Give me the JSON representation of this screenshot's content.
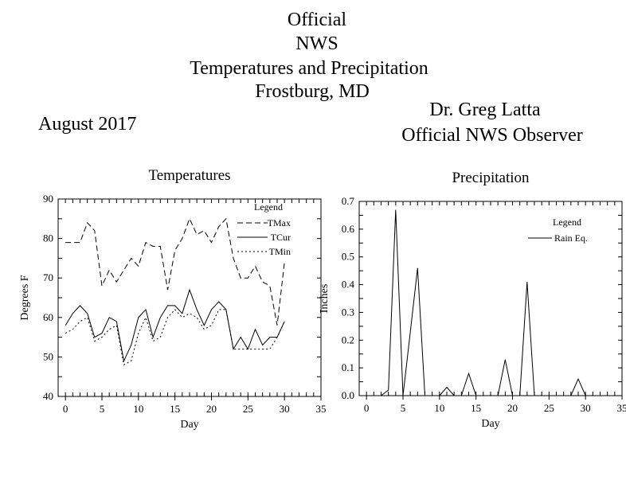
{
  "header": {
    "line1": "Official",
    "line2": "NWS",
    "line3": "Temperatures and Precipitation",
    "line4": "Frostburg, MD",
    "month": "August 2017",
    "observer_name": "Dr. Greg Latta",
    "observer_title": "Official NWS Observer"
  },
  "chart_data": [
    {
      "type": "line",
      "title": "Temperatures",
      "xlabel": "Day",
      "ylabel": "Degrees F",
      "xlim": [
        -1,
        35
      ],
      "ylim": [
        40,
        90
      ],
      "x_ticks": [
        0,
        5,
        10,
        15,
        20,
        25,
        30,
        35
      ],
      "y_ticks": [
        40,
        50,
        60,
        70,
        80,
        90
      ],
      "legend": {
        "title": "Legend",
        "position": "top-right"
      },
      "grid": false,
      "x": [
        0,
        1,
        2,
        3,
        4,
        5,
        6,
        7,
        8,
        9,
        10,
        11,
        12,
        13,
        14,
        15,
        16,
        17,
        18,
        19,
        20,
        21,
        22,
        23,
        24,
        25,
        26,
        27,
        28,
        29,
        30
      ],
      "series": [
        {
          "name": "TMax",
          "style": "dashed",
          "values": [
            79,
            79,
            79,
            84,
            82,
            68,
            72,
            69,
            72,
            75,
            73,
            79,
            78,
            78,
            67,
            77,
            80,
            85,
            81,
            82,
            79,
            83,
            85,
            75,
            70,
            70,
            73,
            69,
            68,
            58,
            74
          ]
        },
        {
          "name": "TCur",
          "style": "solid",
          "values": [
            58,
            61,
            63,
            61,
            55,
            56,
            60,
            59,
            49,
            53,
            60,
            62,
            55,
            60,
            63,
            63,
            61,
            67,
            62,
            58,
            62,
            64,
            62,
            52,
            55,
            52,
            57,
            53,
            55,
            55,
            59
          ]
        },
        {
          "name": "TMin",
          "style": "dotted",
          "values": [
            56,
            57,
            59,
            60,
            54,
            55,
            57,
            58,
            48,
            49,
            56,
            60,
            54,
            55,
            60,
            62,
            60,
            61,
            60,
            57,
            58,
            62,
            62,
            52,
            52,
            52,
            52,
            52,
            52,
            55,
            59
          ]
        }
      ]
    },
    {
      "type": "line",
      "title": "Precipitation",
      "xlabel": "Day",
      "ylabel": "Inches",
      "xlim": [
        -1,
        35
      ],
      "ylim": [
        0,
        0.7
      ],
      "x_ticks": [
        0,
        5,
        10,
        15,
        20,
        25,
        30,
        35
      ],
      "y_ticks": [
        0.0,
        0.1,
        0.2,
        0.3,
        0.4,
        0.5,
        0.6,
        0.7
      ],
      "y_tick_labels": [
        "0.0",
        "0.1",
        "0.2",
        "0.3",
        "0.4",
        "0.5",
        "0.6",
        "0.7"
      ],
      "legend": {
        "title": "Legend",
        "position": "top-right"
      },
      "grid": false,
      "x": [
        1,
        2,
        3,
        4,
        5,
        6,
        7,
        8,
        9,
        10,
        11,
        12,
        13,
        14,
        15,
        16,
        17,
        18,
        19,
        20,
        21,
        22,
        23,
        24,
        25,
        26,
        27,
        28,
        29,
        30,
        31
      ],
      "series": [
        {
          "name": "Rain Eq.",
          "style": "solid",
          "values": [
            0,
            0,
            0.02,
            0.67,
            0,
            0.23,
            0.46,
            0,
            0,
            0,
            0.03,
            0,
            0,
            0.08,
            0,
            0,
            0,
            0,
            0.13,
            0,
            0,
            0.41,
            0,
            0,
            0,
            0,
            0,
            0,
            0.06,
            0,
            0
          ]
        }
      ]
    }
  ]
}
